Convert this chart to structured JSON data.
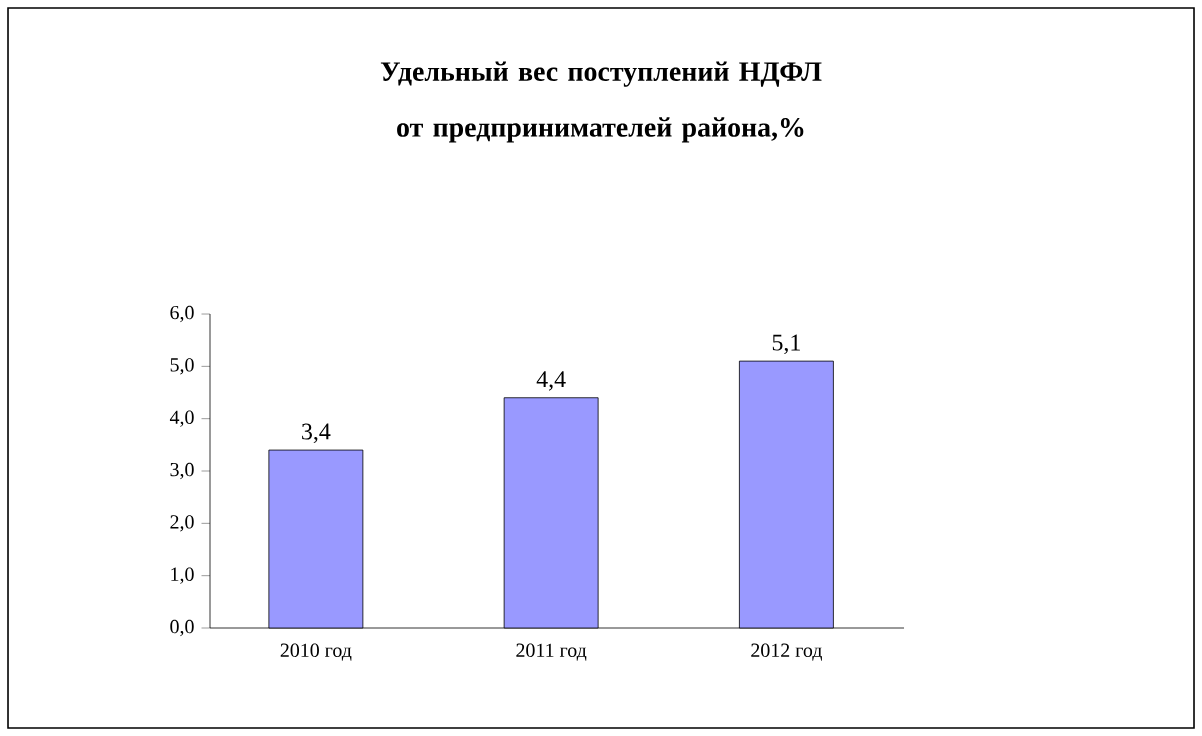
{
  "chart_data": {
    "type": "bar",
    "title": "Удельный вес поступлений НДФЛ от предпринимателей района,%",
    "categories": [
      "2010 год",
      "2011 год",
      "2012 год"
    ],
    "values": [
      3.4,
      4.4,
      5.1
    ],
    "value_labels": [
      "3,4",
      "4,4",
      "5,1"
    ],
    "color": "#9999ff",
    "ylim": [
      0,
      6
    ],
    "yticks": [
      {
        "value": 0,
        "label": "0,0"
      },
      {
        "value": 1,
        "label": "1,0"
      },
      {
        "value": 2,
        "label": "2,0"
      },
      {
        "value": 3,
        "label": "3,0"
      },
      {
        "value": 4,
        "label": "4,0"
      },
      {
        "value": 5,
        "label": "5,0"
      },
      {
        "value": 6,
        "label": "6,0"
      }
    ]
  }
}
